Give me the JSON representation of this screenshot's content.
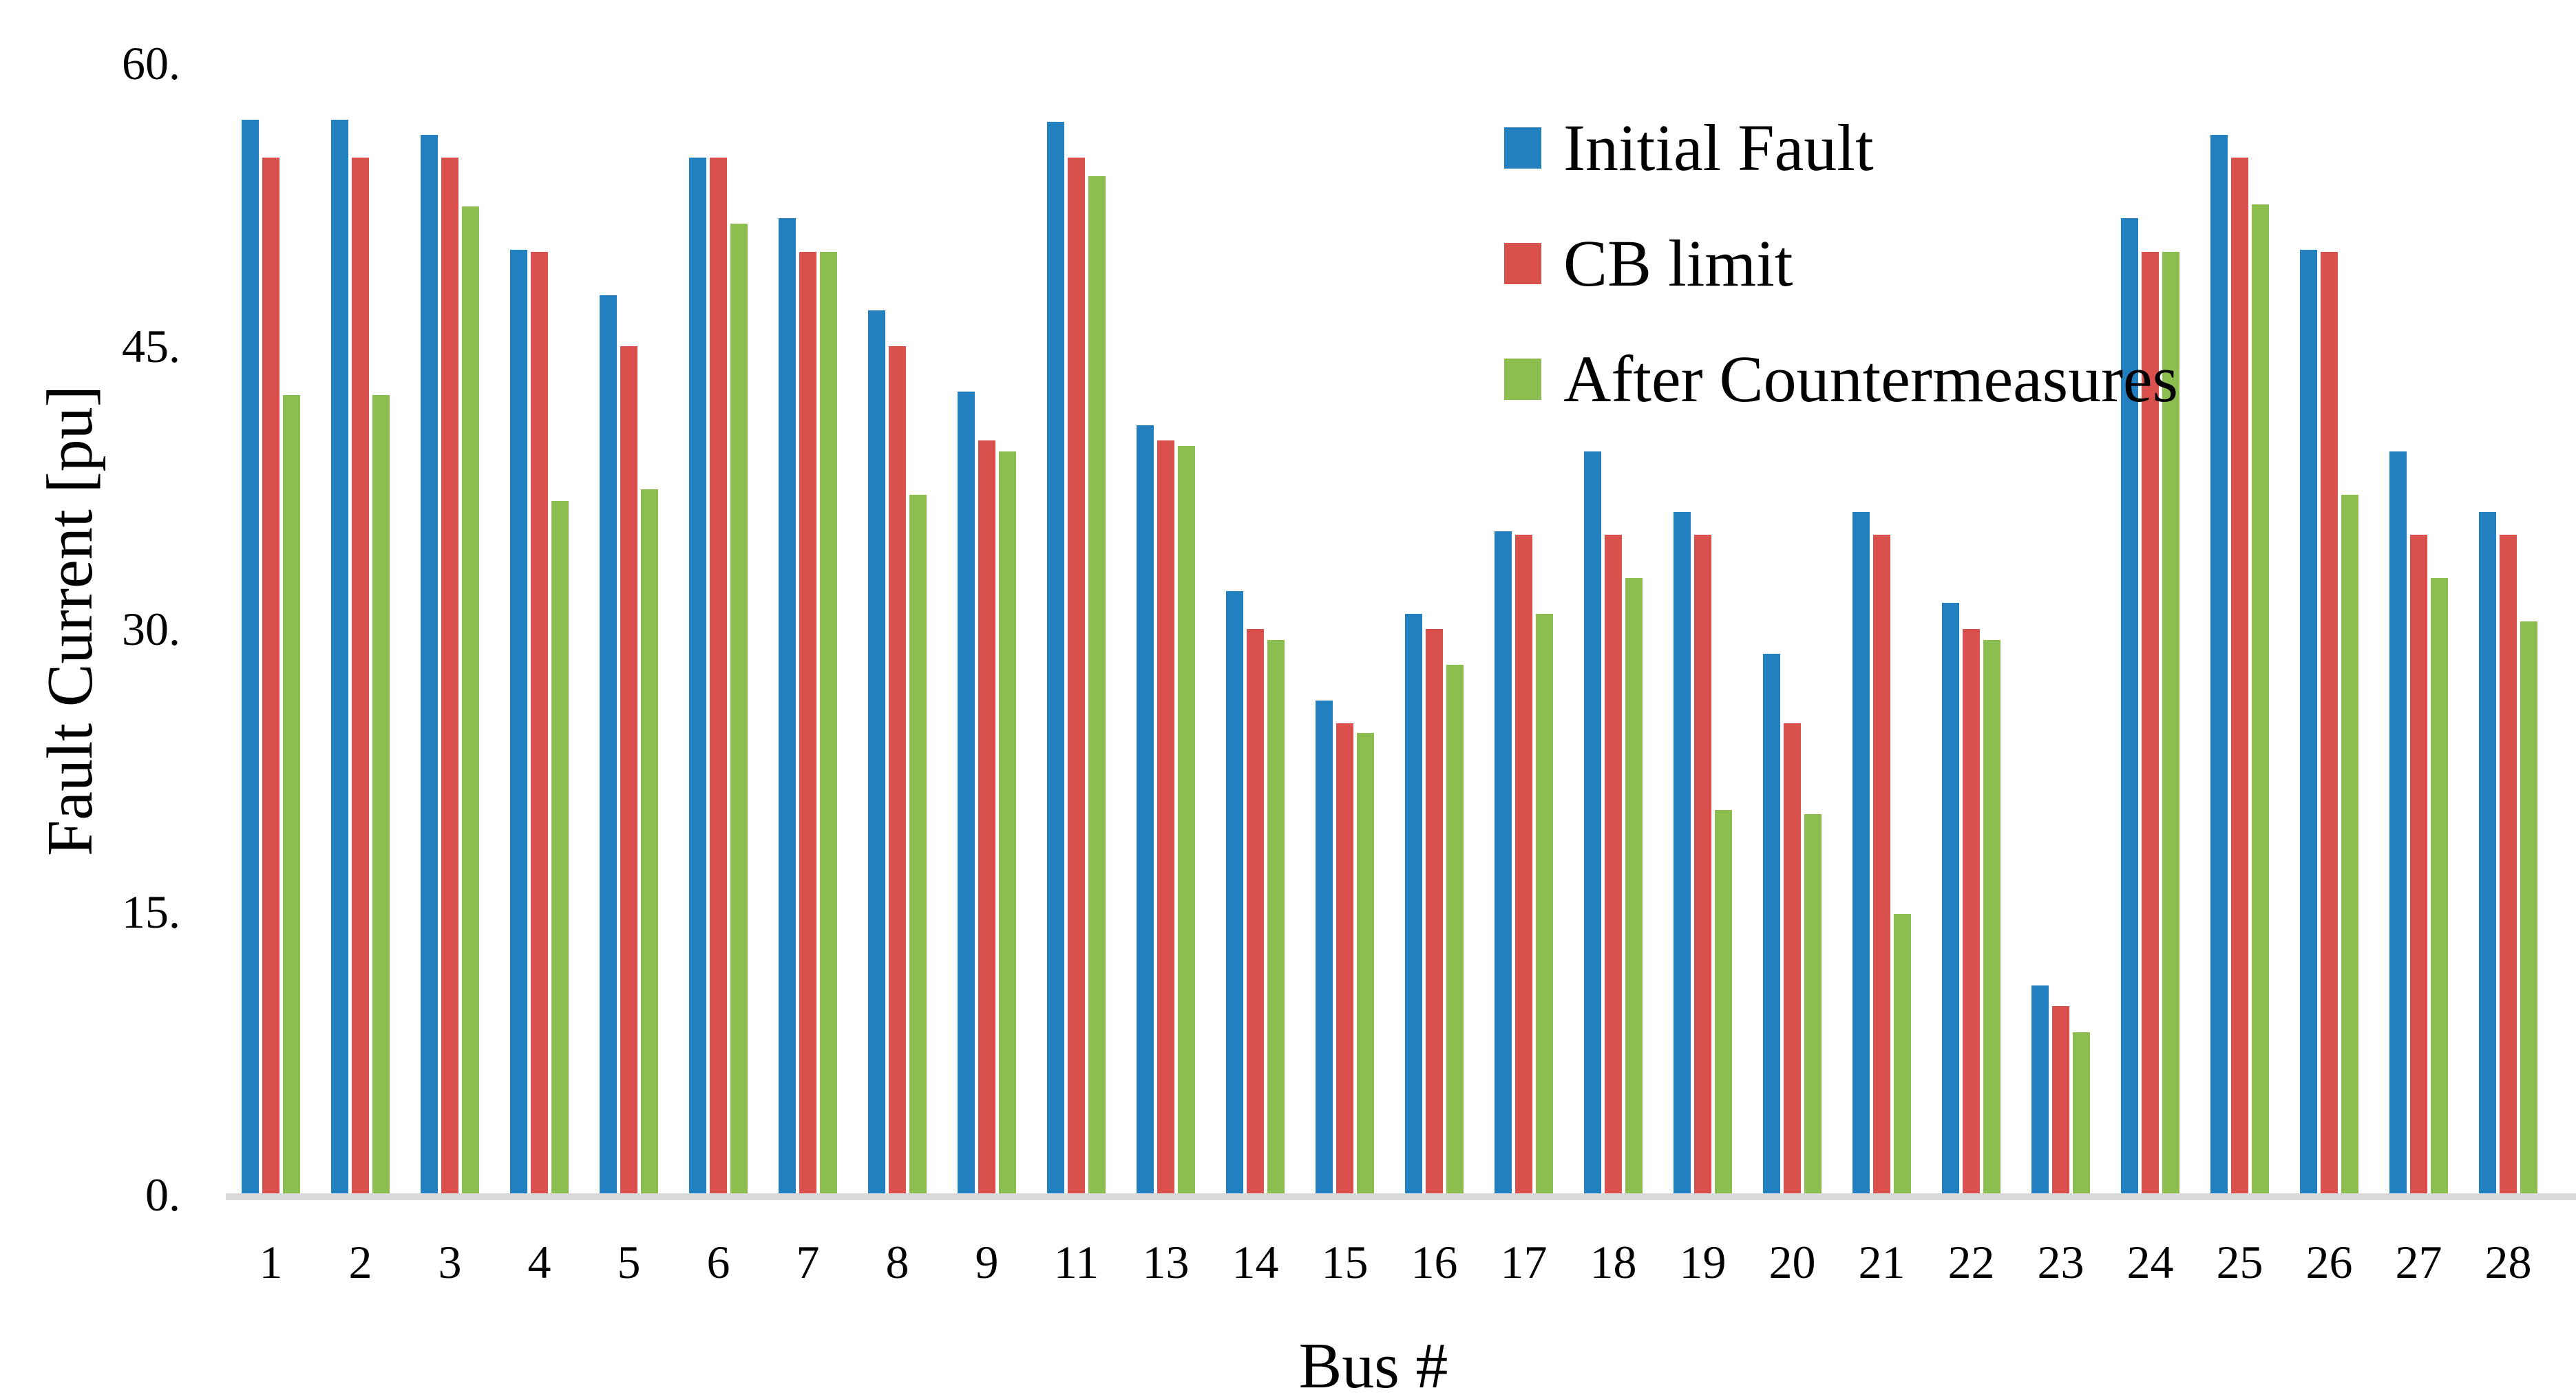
{
  "chart_data": {
    "type": "bar",
    "title": "",
    "xlabel": "Bus #",
    "ylabel": "Fault Current [pu]",
    "ylim": [
      0,
      60
    ],
    "grid": false,
    "legend_position": "top-right",
    "baseline_color": "#d9d9d9",
    "yticks": [
      {
        "value": 0,
        "label": "0."
      },
      {
        "value": 15,
        "label": "15."
      },
      {
        "value": 30,
        "label": "30."
      },
      {
        "value": 45,
        "label": "45."
      },
      {
        "value": 60,
        "label": "60."
      }
    ],
    "categories": [
      "1",
      "2",
      "3",
      "4",
      "5",
      "6",
      "7",
      "8",
      "9",
      "11",
      "13",
      "14",
      "15",
      "16",
      "17",
      "18",
      "19",
      "20",
      "21",
      "22",
      "23",
      "24",
      "25",
      "26",
      "27",
      "28"
    ],
    "series": [
      {
        "name": "Initial Fault",
        "color": "#2380c0",
        "values": [
          57.0,
          57.0,
          56.2,
          50.1,
          47.7,
          55.0,
          51.8,
          46.9,
          42.6,
          56.9,
          40.8,
          32.0,
          26.2,
          30.8,
          35.2,
          39.4,
          36.2,
          28.7,
          36.2,
          31.4,
          11.1,
          51.8,
          56.2,
          50.1,
          39.4,
          36.2
        ]
      },
      {
        "name": "CB limit",
        "color": "#d9504c",
        "values": [
          55.0,
          55.0,
          55.0,
          50.0,
          45.0,
          55.0,
          50.0,
          45.0,
          40.0,
          55.0,
          40.0,
          30.0,
          25.0,
          30.0,
          35.0,
          35.0,
          35.0,
          25.0,
          35.0,
          30.0,
          10.0,
          50.0,
          55.0,
          50.0,
          35.0,
          35.0
        ]
      },
      {
        "name": "After Countermeasures",
        "color": "#8cbe4f",
        "values": [
          42.4,
          42.4,
          52.4,
          36.8,
          37.4,
          51.5,
          50.0,
          37.1,
          39.4,
          54.0,
          39.7,
          29.4,
          24.5,
          28.1,
          30.8,
          32.7,
          20.4,
          20.2,
          14.9,
          29.4,
          8.6,
          50.0,
          52.5,
          37.1,
          32.7,
          30.4
        ]
      }
    ]
  }
}
